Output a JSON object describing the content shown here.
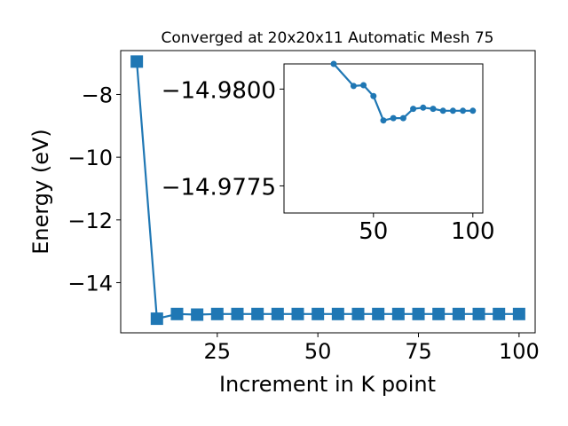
{
  "chart_data": [
    {
      "type": "line",
      "title": "Converged at 20x20x11 Automatic Mesh 75",
      "xlabel": "Increment in K point",
      "ylabel": "Energy (eV)",
      "xlim": [
        1,
        104
      ],
      "ylim": [
        -15.6,
        -6.6
      ],
      "xticks": [
        25,
        50,
        75,
        100
      ],
      "xtick_labels": [
        "25",
        "50",
        "75",
        "100"
      ],
      "yticks": [
        -8,
        -10,
        -12,
        -14
      ],
      "ytick_labels": [
        "−8",
        "−10",
        "−12",
        "−14"
      ],
      "grid": false,
      "marker": "square",
      "color": "#1f77b4",
      "x": [
        5,
        10,
        15,
        20,
        25,
        30,
        35,
        40,
        45,
        50,
        55,
        60,
        65,
        70,
        75,
        80,
        85,
        90,
        95,
        100
      ],
      "values": [
        -6.95,
        -15.15,
        -15.0,
        -15.02,
        -15.0,
        -15.0,
        -15.0,
        -15.0,
        -15.0,
        -15.0,
        -15.0,
        -15.0,
        -15.0,
        -15.0,
        -15.0,
        -15.0,
        -15.0,
        -15.0,
        -15.0,
        -15.0
      ]
    },
    {
      "type": "line",
      "title": "",
      "xlabel": "",
      "ylabel": "",
      "xlim": [
        5,
        105
      ],
      "ylim": [
        -14.9768,
        -14.98065
      ],
      "xticks": [
        50,
        100
      ],
      "xtick_labels": [
        "50",
        "100"
      ],
      "yticks": [
        -14.98,
        -14.9775
      ],
      "ytick_labels": [
        "−14.9800",
        "−14.9775"
      ],
      "grid": false,
      "marker": "circle",
      "color": "#1f77b4",
      "x": [
        30,
        40,
        45,
        50,
        55,
        60,
        65,
        70,
        75,
        80,
        85,
        90,
        95,
        100
      ],
      "values": [
        -14.98065,
        -14.98008,
        -14.9801,
        -14.97982,
        -14.97919,
        -14.97925,
        -14.97925,
        -14.97949,
        -14.97952,
        -14.97949,
        -14.97944,
        -14.97944,
        -14.97944,
        -14.97944
      ]
    }
  ]
}
